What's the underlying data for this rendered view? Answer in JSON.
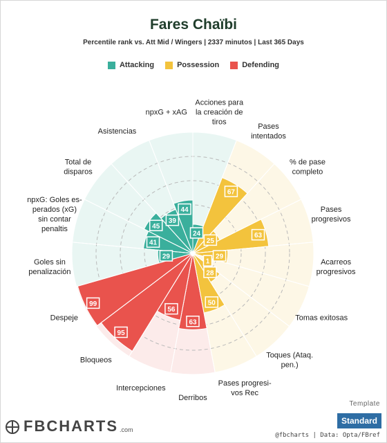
{
  "chart_data": {
    "type": "radar-polar-bar",
    "title": "Fares Chaïbi",
    "subtitle": "Percentile rank vs. Att Mid / Wingers | 2337 minutos | Last 365 Days",
    "legend": [
      {
        "name": "Attacking",
        "color": "#3aaf9c"
      },
      {
        "name": "Possession",
        "color": "#f3c33d"
      },
      {
        "name": "Defending",
        "color": "#e9534d"
      }
    ],
    "background_colors": {
      "Attacking": "#e9f6f3",
      "Possession": "#fdf7e6",
      "Defending": "#fcebea"
    },
    "range": [
      0,
      100
    ],
    "grid_levels": [
      20,
      40,
      60,
      80
    ],
    "categories": [
      {
        "label": "Acciones para la creación de tiros",
        "lines": [
          "Acciones para",
          "la creación de",
          "tiros"
        ],
        "group": "Attacking",
        "value": 24
      },
      {
        "label": "Pases intentados",
        "lines": [
          "Pases",
          "intentados"
        ],
        "group": "Possession",
        "value": 67
      },
      {
        "label": "% de pase completo",
        "lines": [
          "% de pase",
          "completo"
        ],
        "group": "Possession",
        "value": 25
      },
      {
        "label": "Pases progresivos",
        "lines": [
          "Pases",
          "progresivos"
        ],
        "group": "Possession",
        "value": 63
      },
      {
        "label": "Acarreos progresivos",
        "lines": [
          "Acarreos",
          "progresivos"
        ],
        "group": "Possession",
        "value": 29
      },
      {
        "label": "Tomas exitosas",
        "lines": [
          "Tomas exitosas"
        ],
        "group": "Possession",
        "value": 1
      },
      {
        "label": "Toques (Ataq. pen.)",
        "lines": [
          "Toques (Ataq.",
          "pen.)"
        ],
        "group": "Possession",
        "value": 28
      },
      {
        "label": "Pases progresivos Rec",
        "lines": [
          "Pases progresi-",
          "vos Rec"
        ],
        "group": "Possession",
        "value": 50
      },
      {
        "label": "Derribos",
        "lines": [
          "Derribos"
        ],
        "group": "Defending",
        "value": 63
      },
      {
        "label": "Intercepciones",
        "lines": [
          "Intercepciones"
        ],
        "group": "Defending",
        "value": 56
      },
      {
        "label": "Bloqueos",
        "lines": [
          "Bloqueos"
        ],
        "group": "Defending",
        "value": 95
      },
      {
        "label": "Despeje",
        "lines": [
          "Despeje"
        ],
        "group": "Defending",
        "value": 99
      },
      {
        "label": "Goles sin penalización",
        "lines": [
          "Goles sin",
          "penalización"
        ],
        "group": "Attacking",
        "value": 29
      },
      {
        "label": "npxG: Goles esperados (xG) sin contar penaltis",
        "lines": [
          "npxG: Goles es-",
          "perados (xG)",
          "sin contar",
          "penaltis"
        ],
        "group": "Attacking",
        "value": 41
      },
      {
        "label": "Total de disparos",
        "lines": [
          "Total de",
          "disparos"
        ],
        "group": "Attacking",
        "value": 45
      },
      {
        "label": "Asistencias",
        "lines": [
          "Asistencias"
        ],
        "group": "Attacking",
        "value": 39
      },
      {
        "label": "npxG + xAG",
        "lines": [
          "npxG + xAG"
        ],
        "group": "Attacking",
        "value": 44
      }
    ]
  },
  "footer": {
    "template_label": "Template",
    "template_button": "Standard",
    "logo_text": "FBCHARTS",
    "logo_suffix": ".com",
    "credit": "@fbcharts | Data: Opta/FBref"
  }
}
